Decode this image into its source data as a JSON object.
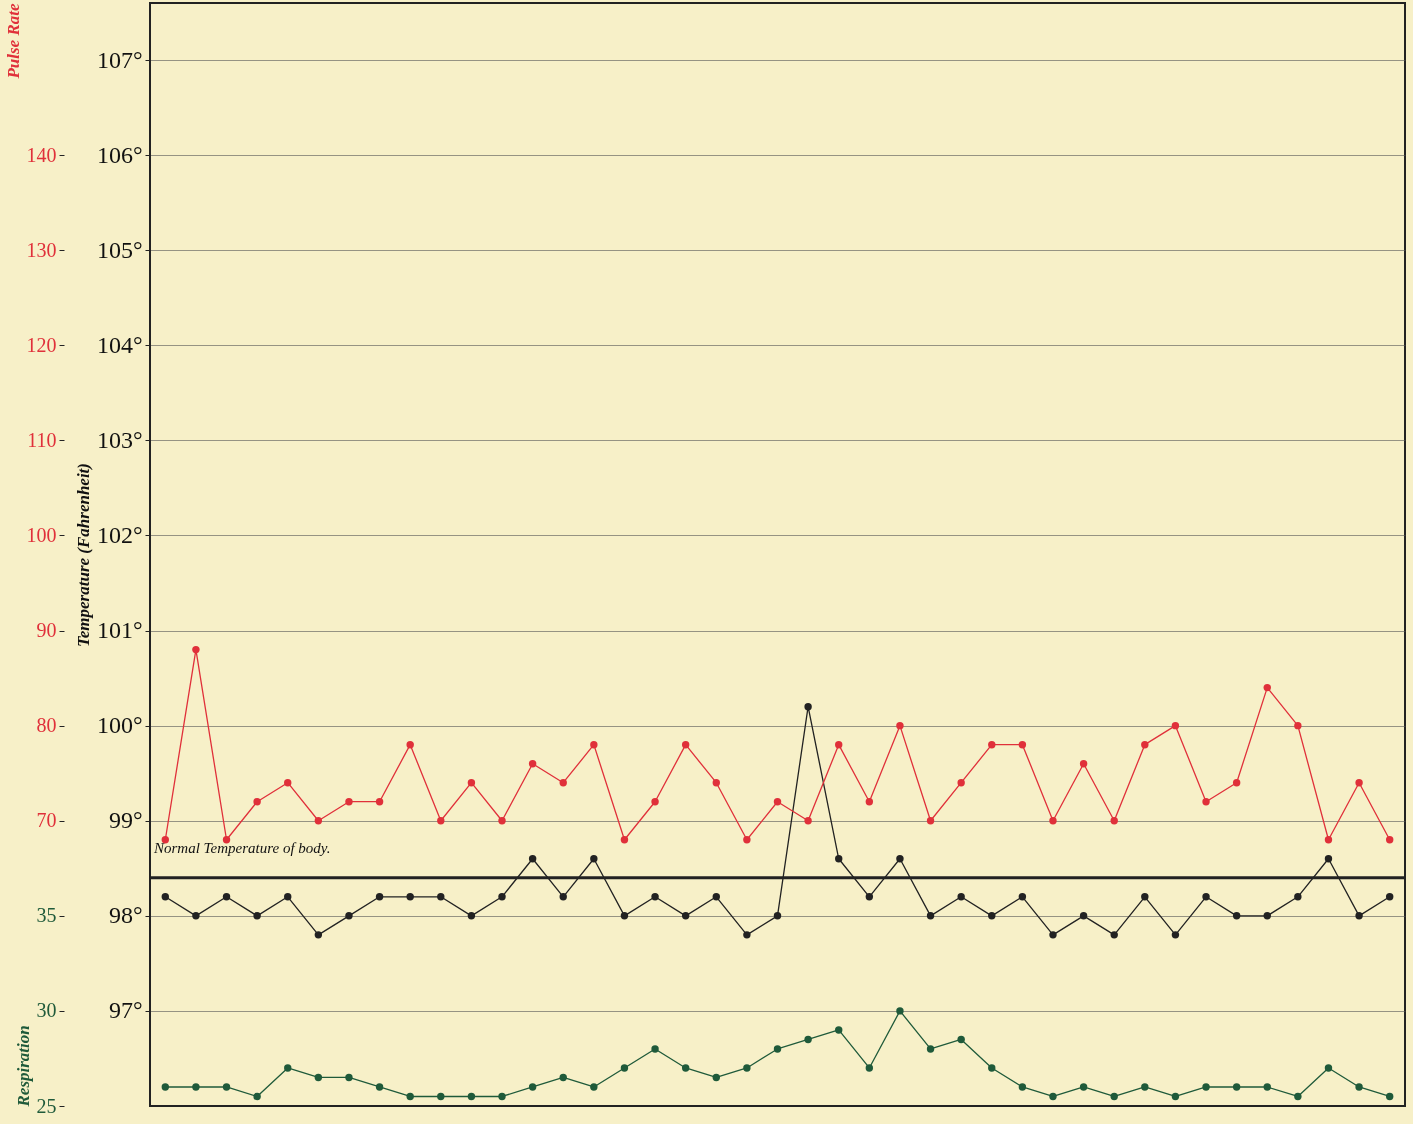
{
  "chart_data": {
    "type": "line",
    "ylabel": "Temperature (Fahrenheit)",
    "y2label": "Pulse Rate",
    "y3label": "Respiration",
    "categories": [
      null,
      null,
      null,
      null,
      null,
      null,
      null,
      null,
      null,
      null,
      null,
      null,
      null,
      null,
      null,
      null,
      null,
      null,
      null,
      null,
      null,
      null,
      null,
      null,
      null,
      null,
      null,
      null,
      null,
      null,
      null,
      null,
      null,
      null,
      null,
      null,
      null,
      null,
      null,
      null,
      null
    ],
    "series": [
      {
        "color": "#222222",
        "values": [
          98.2,
          98.0,
          98.2,
          98.0,
          98.2,
          97.8,
          98.0,
          98.2,
          98.2,
          98.2,
          98.0,
          98.2,
          98.6,
          98.2,
          98.6,
          98.0,
          98.2,
          98.0,
          98.2,
          97.8,
          98.0,
          100.2,
          98.6,
          98.2,
          98.6,
          98.0,
          98.2,
          98.0,
          98.2,
          97.8,
          98.0,
          97.8,
          98.2,
          97.8,
          98.2,
          98.0,
          98.0,
          98.2,
          98.6,
          98.0,
          98.2
        ]
      },
      {
        "color": "#e0303a",
        "axis": "y2",
        "values": [
          68,
          88,
          68,
          72,
          74,
          70,
          72,
          72,
          78,
          70,
          74,
          70,
          76,
          74,
          78,
          68,
          72,
          78,
          74,
          68,
          72,
          70,
          78,
          72,
          80,
          70,
          74,
          78,
          78,
          70,
          76,
          70,
          78,
          80,
          72,
          74,
          84,
          80,
          68,
          74,
          68
        ]
      },
      {
        "color": "#1f5a3a",
        "axis": "y3",
        "values": [
          26,
          26,
          26,
          25.5,
          27,
          26.5,
          26.5,
          26,
          25.5,
          25.5,
          25.5,
          25.5,
          26,
          26.5,
          26,
          27,
          28,
          27,
          26.5,
          27,
          28,
          28.5,
          29,
          27,
          30,
          28,
          28.5,
          27,
          26,
          25.5,
          26,
          25.5,
          26,
          25.5,
          26,
          26,
          26,
          25.5,
          27,
          26,
          25.5
        ]
      }
    ],
    "ylim": [
      96,
      107.6
    ],
    "yticks": [
      {
        "value": 97,
        "label": "97°"
      },
      {
        "value": 98,
        "label": "98°"
      },
      {
        "value": 99,
        "label": "99°"
      },
      {
        "value": 100,
        "label": "100°"
      },
      {
        "value": 101,
        "label": "101°"
      },
      {
        "value": 102,
        "label": "102°"
      },
      {
        "value": 103,
        "label": "103°"
      },
      {
        "value": 104,
        "label": "104°"
      },
      {
        "value": 105,
        "label": "105°"
      },
      {
        "value": 106,
        "label": "106°"
      },
      {
        "value": 107,
        "label": "107°"
      }
    ],
    "y2lim": [
      40,
      156
    ],
    "y2ticks": [
      70,
      80,
      90,
      100,
      110,
      120,
      130,
      140
    ],
    "y3lim": [
      25,
      83
    ],
    "y3ticks": [
      25,
      30,
      35
    ],
    "ref_lines": [
      {
        "axis": "y",
        "value": 98.4,
        "label": "Normal Temperature of body."
      }
    ],
    "grid": true,
    "marker": "circle",
    "line_style": "solid"
  }
}
